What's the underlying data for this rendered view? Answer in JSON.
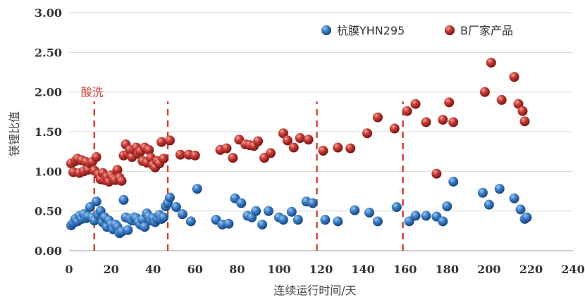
{
  "chart_data": {
    "type": "scatter",
    "xlabel": "连续运行时间/天",
    "ylabel": "镁锂比值",
    "xlim": [
      0,
      240
    ],
    "ylim": [
      0,
      3
    ],
    "xticks": [
      0,
      20,
      40,
      60,
      80,
      100,
      120,
      140,
      160,
      180,
      200,
      220,
      240
    ],
    "xtick_labels": [
      "0",
      "20",
      "40",
      "60",
      "80",
      "100",
      "120",
      "140",
      "160",
      "180",
      "200",
      "220",
      "240"
    ],
    "yticks": [
      0,
      0.5,
      1,
      1.5,
      2,
      2.5,
      3
    ],
    "ytick_labels": [
      "0.00",
      "0.50",
      "1.00",
      "1.50",
      "2.00",
      "2.50",
      "3.00"
    ],
    "grid": "horizontal",
    "legend_position": "top-right",
    "vlines": [
      12,
      47,
      118,
      159
    ],
    "vline_color": "#d93a32",
    "annotation": {
      "text": "酸洗",
      "x": 13,
      "y": 2.0
    },
    "series": [
      {
        "name": "杭膜YHN295",
        "color": "#2b6fb8",
        "points": [
          [
            1,
            0.32
          ],
          [
            2,
            0.35
          ],
          [
            3,
            0.4
          ],
          [
            4,
            0.37
          ],
          [
            5,
            0.44
          ],
          [
            6,
            0.4
          ],
          [
            7,
            0.46
          ],
          [
            8,
            0.41
          ],
          [
            9,
            0.43
          ],
          [
            10,
            0.55
          ],
          [
            11,
            0.42
          ],
          [
            12,
            0.38
          ],
          [
            13,
            0.62
          ],
          [
            14,
            0.45
          ],
          [
            15,
            0.5
          ],
          [
            16,
            0.36
          ],
          [
            17,
            0.42
          ],
          [
            18,
            0.3
          ],
          [
            19,
            0.38
          ],
          [
            20,
            0.33
          ],
          [
            21,
            0.27
          ],
          [
            22,
            0.33
          ],
          [
            23,
            0.3
          ],
          [
            24,
            0.22
          ],
          [
            25,
            0.24
          ],
          [
            26,
            0.64
          ],
          [
            27,
            0.42
          ],
          [
            28,
            0.26
          ],
          [
            29,
            0.4
          ],
          [
            30,
            0.38
          ],
          [
            31,
            0.42
          ],
          [
            32,
            0.41
          ],
          [
            33,
            0.36
          ],
          [
            34,
            0.33
          ],
          [
            35,
            0.39
          ],
          [
            36,
            0.3
          ],
          [
            37,
            0.47
          ],
          [
            38,
            0.43
          ],
          [
            39,
            0.38
          ],
          [
            40,
            0.41
          ],
          [
            41,
            0.36
          ],
          [
            42,
            0.4
          ],
          [
            43,
            0.45
          ],
          [
            44,
            0.4
          ],
          [
            45,
            0.42
          ],
          [
            46,
            0.56
          ],
          [
            47,
            0.6
          ],
          [
            48,
            0.67
          ],
          [
            51,
            0.55
          ],
          [
            54,
            0.46
          ],
          [
            58,
            0.37
          ],
          [
            61,
            0.78
          ],
          [
            70,
            0.39
          ],
          [
            73,
            0.33
          ],
          [
            76,
            0.34
          ],
          [
            79,
            0.66
          ],
          [
            82,
            0.6
          ],
          [
            85,
            0.44
          ],
          [
            87,
            0.42
          ],
          [
            89,
            0.5
          ],
          [
            92,
            0.33
          ],
          [
            95,
            0.5
          ],
          [
            100,
            0.42
          ],
          [
            102,
            0.39
          ],
          [
            106,
            0.49
          ],
          [
            109,
            0.39
          ],
          [
            113,
            0.62
          ],
          [
            116,
            0.6
          ],
          [
            122,
            0.39
          ],
          [
            128,
            0.37
          ],
          [
            136,
            0.51
          ],
          [
            143,
            0.48
          ],
          [
            147,
            0.37
          ],
          [
            156,
            0.55
          ],
          [
            162,
            0.37
          ],
          [
            165,
            0.44
          ],
          [
            170,
            0.44
          ],
          [
            175,
            0.43
          ],
          [
            178,
            0.37
          ],
          [
            180,
            0.56
          ],
          [
            183,
            0.87
          ],
          [
            197,
            0.73
          ],
          [
            200,
            0.58
          ],
          [
            205,
            0.78
          ],
          [
            212,
            0.66
          ],
          [
            215,
            0.52
          ],
          [
            217,
            0.4
          ],
          [
            218,
            0.42
          ]
        ]
      },
      {
        "name": "B厂家产品",
        "color": "#b3302d",
        "points": [
          [
            1,
            1.1
          ],
          [
            2,
            0.99
          ],
          [
            3,
            1.13
          ],
          [
            4,
            1.16
          ],
          [
            5,
            0.98
          ],
          [
            6,
            1.14
          ],
          [
            7,
            1.0
          ],
          [
            8,
            1.12
          ],
          [
            9,
            1.02
          ],
          [
            10,
            1.1
          ],
          [
            11,
            1.12
          ],
          [
            12,
            1.01
          ],
          [
            13,
            1.18
          ],
          [
            14,
            0.96
          ],
          [
            15,
            0.9
          ],
          [
            16,
            0.98
          ],
          [
            17,
            0.89
          ],
          [
            18,
            0.93
          ],
          [
            19,
            0.87
          ],
          [
            20,
            0.95
          ],
          [
            21,
            0.91
          ],
          [
            22,
            0.89
          ],
          [
            23,
            1.02
          ],
          [
            24,
            0.92
          ],
          [
            25,
            0.88
          ],
          [
            26,
            1.2
          ],
          [
            27,
            1.34
          ],
          [
            28,
            1.22
          ],
          [
            29,
            1.27
          ],
          [
            30,
            1.18
          ],
          [
            31,
            1.27
          ],
          [
            32,
            1.3
          ],
          [
            33,
            1.22
          ],
          [
            34,
            1.25
          ],
          [
            35,
            1.13
          ],
          [
            36,
            1.3
          ],
          [
            37,
            1.11
          ],
          [
            38,
            1.27
          ],
          [
            39,
            1.17
          ],
          [
            40,
            1.08
          ],
          [
            41,
            1.05
          ],
          [
            42,
            1.13
          ],
          [
            43,
            1.1
          ],
          [
            44,
            1.37
          ],
          [
            45,
            1.16
          ],
          [
            48,
            1.39
          ],
          [
            53,
            1.21
          ],
          [
            57,
            1.21
          ],
          [
            60,
            1.2
          ],
          [
            72,
            1.27
          ],
          [
            75,
            1.29
          ],
          [
            78,
            1.17
          ],
          [
            81,
            1.4
          ],
          [
            84,
            1.34
          ],
          [
            86,
            1.33
          ],
          [
            88,
            1.32
          ],
          [
            90,
            1.38
          ],
          [
            93,
            1.17
          ],
          [
            96,
            1.23
          ],
          [
            102,
            1.48
          ],
          [
            104,
            1.39
          ],
          [
            107,
            1.3
          ],
          [
            110,
            1.42
          ],
          [
            114,
            1.4
          ],
          [
            121,
            1.26
          ],
          [
            128,
            1.3
          ],
          [
            134,
            1.29
          ],
          [
            142,
            1.48
          ],
          [
            147,
            1.68
          ],
          [
            155,
            1.54
          ],
          [
            161,
            1.76
          ],
          [
            165,
            1.85
          ],
          [
            170,
            1.62
          ],
          [
            175,
            0.97
          ],
          [
            178,
            1.65
          ],
          [
            181,
            1.87
          ],
          [
            183,
            1.62
          ],
          [
            198,
            2.0
          ],
          [
            201,
            2.37
          ],
          [
            206,
            1.9
          ],
          [
            212,
            2.19
          ],
          [
            214,
            1.85
          ],
          [
            216,
            1.76
          ],
          [
            217,
            1.63
          ]
        ]
      }
    ]
  }
}
